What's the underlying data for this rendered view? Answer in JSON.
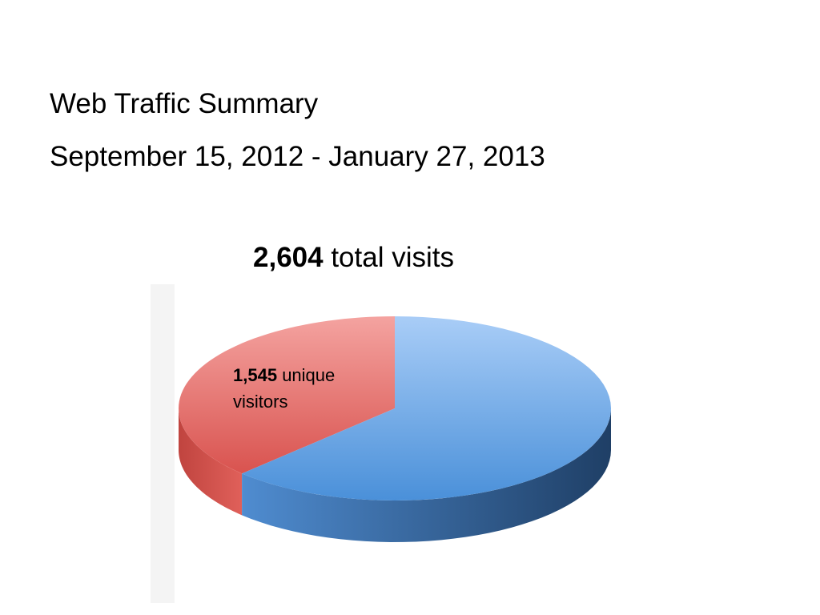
{
  "chart_data": {
    "type": "pie",
    "title": "Web Traffic Summary",
    "subtitle": "September 15, 2012 - January 27, 2013",
    "total": {
      "value": 2604,
      "label": "2,604",
      "text": "total visits"
    },
    "categories": [
      "unique visitors",
      null
    ],
    "values": [
      1545,
      2575
    ],
    "value_labels": [
      "1,545",
      null
    ],
    "colors": [
      "#e0605a",
      "#5b9bdc"
    ]
  }
}
